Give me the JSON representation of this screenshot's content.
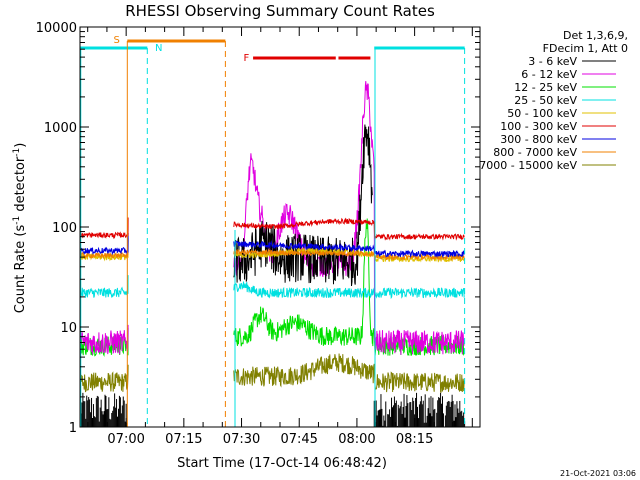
{
  "chart_data": {
    "type": "line",
    "title": "RHESSI Observing Summary Count Rates",
    "xlabel": "Start Time (17-Oct-14 06:48:42)",
    "ylabel_main": "Count Rate (s",
    "ylabel_sup1": "-1",
    "ylabel_mid": " detector",
    "ylabel_sup2": "-1",
    "ylabel_end": ")",
    "y_scale": "log",
    "ylim": [
      1,
      10000
    ],
    "xlim_minutes": [
      -12,
      92
    ],
    "x_ticks": [
      {
        "t": 0,
        "label": "07:00"
      },
      {
        "t": 15,
        "label": "07:15"
      },
      {
        "t": 30,
        "label": "07:30"
      },
      {
        "t": 45,
        "label": "07:45"
      },
      {
        "t": 60,
        "label": "08:00"
      },
      {
        "t": 75,
        "label": "08:15"
      }
    ],
    "y_ticks": [
      {
        "v": 1,
        "label": "1"
      },
      {
        "v": 10,
        "label": "10"
      },
      {
        "v": 100,
        "label": "100"
      },
      {
        "v": 1000,
        "label": "1000"
      },
      {
        "v": 10000,
        "label": "10000"
      }
    ],
    "legend": {
      "placement": "right",
      "header1": "Det 1,3,6,9,",
      "header2": "FDecim 1, Att 0"
    },
    "series": [
      {
        "name": "3 - 6 keV",
        "color": "#000000"
      },
      {
        "name": "6 - 12 keV",
        "color": "#e000e0"
      },
      {
        "name": "12 - 25 keV",
        "color": "#00e000"
      },
      {
        "name": "25 - 50 keV",
        "color": "#00e0e0"
      },
      {
        "name": "50 - 100 keV",
        "color": "#e0c000"
      },
      {
        "name": "100 - 300 keV",
        "color": "#e00000"
      },
      {
        "name": "300 - 800 keV",
        "color": "#0000e0"
      },
      {
        "name": "800 - 7000 keV",
        "color": "#f08000"
      },
      {
        "name": "7000 - 15000 keV",
        "color": "#808000"
      }
    ],
    "flags": [
      {
        "label": "S",
        "color": "#f08000"
      },
      {
        "label": "N",
        "color": "#00e0e0"
      },
      {
        "label": "F",
        "color": "#e00000"
      }
    ],
    "timestamp": "21-Oct-2021 03:06"
  }
}
